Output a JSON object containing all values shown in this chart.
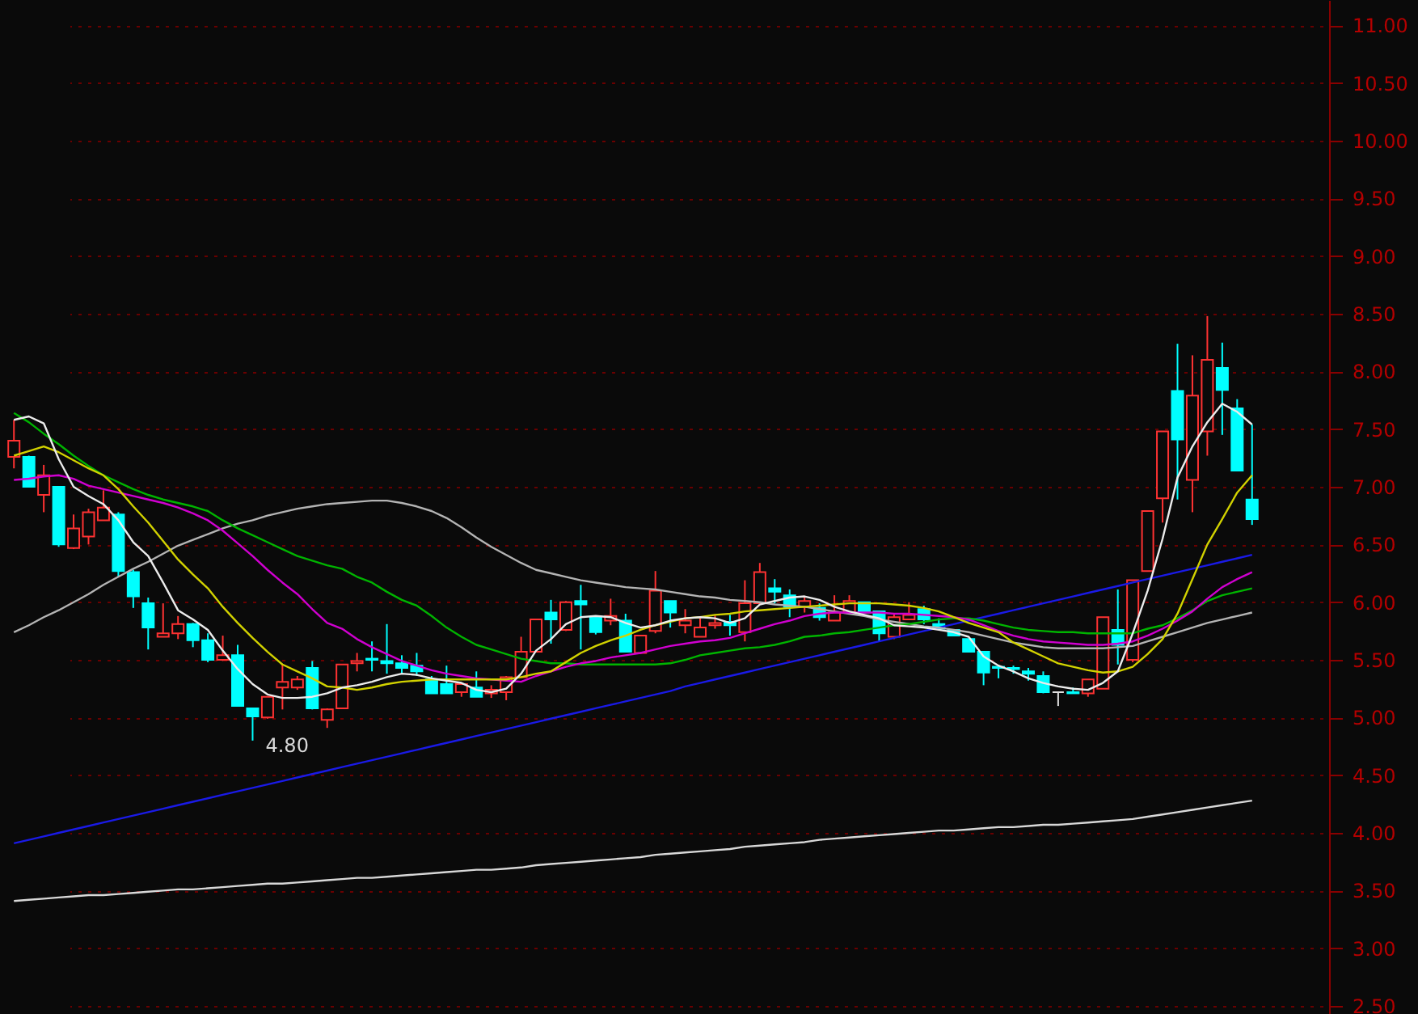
{
  "chart_data": {
    "type": "candlestick",
    "categories": [
      null,
      null,
      null,
      null,
      null,
      null,
      null,
      null,
      null,
      null,
      null,
      null,
      null,
      null,
      null,
      null,
      null,
      null,
      null,
      null,
      null,
      null,
      null,
      null,
      null,
      null,
      null,
      null,
      null,
      null,
      null,
      null,
      null,
      null,
      null,
      null,
      null,
      null,
      null,
      null,
      null,
      null,
      null,
      null,
      null,
      null,
      null,
      null,
      null,
      null,
      null,
      null,
      null,
      null,
      null,
      null,
      null,
      null,
      null,
      null,
      null,
      null,
      null,
      null,
      null,
      null,
      null,
      null,
      null,
      null,
      null,
      null,
      null,
      null,
      null,
      null,
      null,
      null,
      null,
      null,
      null,
      null,
      null,
      null
    ],
    "ohlc": [
      [
        7.26,
        7.58,
        7.16,
        7.4
      ],
      [
        7.26,
        7.27,
        7.0,
        7.0
      ],
      [
        6.93,
        7.19,
        6.78,
        7.1
      ],
      [
        7.0,
        7.0,
        6.48,
        6.5
      ],
      [
        6.47,
        6.76,
        6.46,
        6.64
      ],
      [
        6.57,
        6.81,
        6.5,
        6.78
      ],
      [
        6.71,
        6.97,
        6.71,
        6.82
      ],
      [
        6.76,
        6.78,
        6.22,
        6.27
      ],
      [
        6.26,
        6.28,
        5.95,
        6.05
      ],
      [
        5.99,
        6.04,
        5.59,
        5.78
      ],
      [
        5.7,
        5.99,
        5.7,
        5.73
      ],
      [
        5.73,
        5.88,
        5.68,
        5.81
      ],
      [
        5.81,
        5.82,
        5.61,
        5.67
      ],
      [
        5.67,
        5.73,
        5.48,
        5.5
      ],
      [
        5.5,
        5.71,
        5.49,
        5.54
      ],
      [
        5.54,
        5.63,
        5.1,
        5.1
      ],
      [
        5.08,
        5.08,
        4.8,
        5.01
      ],
      [
        5.0,
        5.18,
        4.99,
        5.18
      ],
      [
        5.26,
        5.46,
        5.07,
        5.31
      ],
      [
        5.26,
        5.36,
        5.24,
        5.33
      ],
      [
        5.43,
        5.49,
        5.07,
        5.08
      ],
      [
        4.98,
        5.08,
        4.91,
        5.07
      ],
      [
        5.08,
        5.46,
        5.08,
        5.46
      ],
      [
        5.47,
        5.56,
        5.4,
        5.49
      ],
      [
        5.51,
        5.66,
        5.4,
        5.5
      ],
      [
        5.49,
        5.81,
        5.38,
        5.47
      ],
      [
        5.47,
        5.54,
        5.38,
        5.43
      ],
      [
        5.45,
        5.56,
        5.36,
        5.4
      ],
      [
        5.33,
        5.36,
        5.21,
        5.21
      ],
      [
        5.29,
        5.45,
        5.21,
        5.21
      ],
      [
        5.22,
        5.3,
        5.18,
        5.29
      ],
      [
        5.26,
        5.4,
        5.18,
        5.18
      ],
      [
        5.21,
        5.28,
        5.17,
        5.24
      ],
      [
        5.22,
        5.36,
        5.15,
        5.35
      ],
      [
        5.35,
        5.7,
        5.35,
        5.57
      ],
      [
        5.57,
        5.85,
        5.57,
        5.85
      ],
      [
        5.91,
        6.02,
        5.64,
        5.85
      ],
      [
        5.76,
        6.01,
        5.75,
        6.0
      ],
      [
        6.01,
        6.15,
        5.59,
        5.98
      ],
      [
        5.87,
        5.87,
        5.72,
        5.74
      ],
      [
        5.84,
        6.03,
        5.8,
        5.88
      ],
      [
        5.84,
        5.9,
        5.57,
        5.57
      ],
      [
        5.56,
        5.71,
        5.55,
        5.71
      ],
      [
        5.75,
        6.27,
        5.73,
        6.1
      ],
      [
        6.01,
        6.01,
        5.78,
        5.91
      ],
      [
        5.8,
        5.94,
        5.73,
        5.84
      ],
      [
        5.7,
        5.86,
        5.7,
        5.78
      ],
      [
        5.8,
        5.89,
        5.77,
        5.82
      ],
      [
        5.83,
        5.89,
        5.71,
        5.8
      ],
      [
        5.74,
        6.19,
        5.66,
        5.99
      ],
      [
        5.99,
        6.34,
        5.99,
        6.26
      ],
      [
        6.12,
        6.2,
        5.99,
        6.09
      ],
      [
        6.06,
        6.11,
        5.87,
        5.96
      ],
      [
        5.96,
        6.05,
        5.91,
        6.01
      ],
      [
        5.95,
        5.99,
        5.84,
        5.87
      ],
      [
        5.84,
        6.06,
        5.84,
        5.91
      ],
      [
        5.91,
        6.06,
        5.9,
        6.01
      ],
      [
        6.0,
        6.0,
        5.91,
        5.91
      ],
      [
        5.92,
        5.92,
        5.66,
        5.73
      ],
      [
        5.7,
        5.9,
        5.68,
        5.87
      ],
      [
        5.85,
        6.0,
        5.85,
        5.89
      ],
      [
        5.94,
        5.97,
        5.81,
        5.85
      ],
      [
        5.81,
        5.86,
        5.77,
        5.77
      ],
      [
        5.76,
        5.76,
        5.71,
        5.71
      ],
      [
        5.68,
        5.68,
        5.57,
        5.57
      ],
      [
        5.57,
        5.57,
        5.28,
        5.39
      ],
      [
        5.44,
        5.44,
        5.34,
        5.43
      ],
      [
        5.43,
        5.45,
        5.38,
        5.42
      ],
      [
        5.4,
        5.43,
        5.32,
        5.38
      ],
      [
        5.36,
        5.4,
        5.21,
        5.22
      ],
      [
        5.22,
        5.22,
        5.1,
        5.22
      ],
      [
        5.22,
        5.26,
        5.21,
        5.21
      ],
      [
        5.21,
        5.33,
        5.18,
        5.33
      ],
      [
        5.25,
        5.87,
        5.25,
        5.87
      ],
      [
        5.76,
        6.11,
        5.46,
        5.63
      ],
      [
        5.5,
        6.19,
        5.48,
        6.19
      ],
      [
        6.27,
        6.79,
        6.27,
        6.79
      ],
      [
        6.9,
        7.48,
        6.69,
        7.48
      ],
      [
        7.83,
        8.24,
        6.89,
        7.41
      ],
      [
        7.06,
        8.14,
        6.78,
        7.79
      ],
      [
        7.48,
        8.48,
        7.27,
        8.1
      ],
      [
        8.03,
        8.25,
        7.45,
        7.84
      ],
      [
        7.68,
        7.76,
        7.14,
        7.14
      ],
      [
        6.89,
        7.54,
        6.67,
        6.72
      ]
    ],
    "colors": [
      "#ff3232",
      "#00ffff",
      "#ff3232",
      "#00ffff",
      "#ff3232",
      "#ff3232",
      "#ff3232",
      "#00ffff",
      "#00ffff",
      "#00ffff",
      "#ff3232",
      "#ff3232",
      "#00ffff",
      "#00ffff",
      "#ff3232",
      "#00ffff",
      "#00ffff",
      "#ff3232",
      "#ff3232",
      "#ff3232",
      "#00ffff",
      "#ff3232",
      "#ff3232",
      "#ff3232",
      "#00ffff",
      "#00ffff",
      "#00ffff",
      "#00ffff",
      "#00ffff",
      "#00ffff",
      "#ff3232",
      "#00ffff",
      "#ff3232",
      "#ff3232",
      "#ff3232",
      "#ff3232",
      "#00ffff",
      "#ff3232",
      "#00ffff",
      "#00ffff",
      "#ff3232",
      "#00ffff",
      "#ff3232",
      "#ff3232",
      "#00ffff",
      "#ff3232",
      "#ff3232",
      "#ff3232",
      "#00ffff",
      "#ff3232",
      "#ff3232",
      "#00ffff",
      "#00ffff",
      "#ff3232",
      "#00ffff",
      "#ff3232",
      "#ff3232",
      "#00ffff",
      "#00ffff",
      "#ff3232",
      "#ff3232",
      "#00ffff",
      "#00ffff",
      "#00ffff",
      "#00ffff",
      "#00ffff",
      "#00ffff",
      "#00ffff",
      "#00ffff",
      "#00ffff",
      "#e0e0e0",
      "#00ffff",
      "#ff3232",
      "#ff3232",
      "#00ffff",
      "#ff3232",
      "#ff3232",
      "#ff3232",
      "#00ffff",
      "#ff3232",
      "#ff3232",
      "#00ffff",
      "#00ffff",
      "#00ffff"
    ],
    "series": [
      {
        "type": "line",
        "color": "#d8d8d8",
        "values": [
          3.41,
          3.42,
          3.43,
          3.44,
          3.45,
          3.46,
          3.46,
          3.47,
          3.48,
          3.49,
          3.5,
          3.51,
          3.51,
          3.52,
          3.53,
          3.54,
          3.55,
          3.56,
          3.56,
          3.57,
          3.58,
          3.59,
          3.6,
          3.61,
          3.61,
          3.62,
          3.63,
          3.64,
          3.65,
          3.66,
          3.67,
          3.68,
          3.68,
          3.69,
          3.7,
          3.72,
          3.73,
          3.74,
          3.75,
          3.76,
          3.77,
          3.78,
          3.79,
          3.81,
          3.82,
          3.83,
          3.84,
          3.85,
          3.86,
          3.88,
          3.89,
          3.9,
          3.91,
          3.92,
          3.94,
          3.95,
          3.96,
          3.97,
          3.98,
          3.99,
          4.0,
          4.01,
          4.02,
          4.02,
          4.03,
          4.04,
          4.05,
          4.05,
          4.06,
          4.07,
          4.07,
          4.08,
          4.09,
          4.1,
          4.11,
          4.12,
          4.14,
          4.16,
          4.18,
          4.2,
          4.22,
          4.24,
          4.26,
          4.28
        ]
      },
      {
        "type": "line",
        "color": "#1a1ae6",
        "values": [
          3.91,
          3.94,
          3.97,
          4.0,
          4.03,
          4.06,
          4.09,
          4.12,
          4.15,
          4.18,
          4.21,
          4.24,
          4.27,
          4.3,
          4.33,
          4.36,
          4.39,
          4.42,
          4.45,
          4.48,
          4.51,
          4.54,
          4.57,
          4.6,
          4.63,
          4.66,
          4.69,
          4.72,
          4.75,
          4.78,
          4.81,
          4.84,
          4.87,
          4.9,
          4.93,
          4.96,
          4.99,
          5.02,
          5.05,
          5.08,
          5.11,
          5.14,
          5.17,
          5.2,
          5.23,
          5.27,
          5.3,
          5.33,
          5.36,
          5.39,
          5.42,
          5.45,
          5.48,
          5.51,
          5.54,
          5.57,
          5.6,
          5.63,
          5.66,
          5.69,
          5.72,
          5.75,
          5.78,
          5.81,
          5.84,
          5.87,
          5.9,
          5.93,
          5.96,
          5.99,
          6.02,
          6.05,
          6.08,
          6.11,
          6.14,
          6.17,
          6.2,
          6.23,
          6.26,
          6.29,
          6.32,
          6.35,
          6.38,
          6.41
        ]
      },
      {
        "type": "line",
        "color": "#b4b4b4",
        "values": [
          5.74,
          5.8,
          5.87,
          5.93,
          6.0,
          6.07,
          6.15,
          6.22,
          6.29,
          6.35,
          6.42,
          6.49,
          6.54,
          6.59,
          6.64,
          6.68,
          6.71,
          6.75,
          6.78,
          6.81,
          6.83,
          6.85,
          6.86,
          6.87,
          6.88,
          6.88,
          6.86,
          6.83,
          6.79,
          6.73,
          6.65,
          6.56,
          6.48,
          6.41,
          6.34,
          6.28,
          6.25,
          6.22,
          6.19,
          6.17,
          6.15,
          6.13,
          6.12,
          6.11,
          6.09,
          6.07,
          6.05,
          6.04,
          6.02,
          6.01,
          6.0,
          5.98,
          5.97,
          5.96,
          5.94,
          5.92,
          5.9,
          5.88,
          5.85,
          5.83,
          5.81,
          5.79,
          5.78,
          5.76,
          5.74,
          5.71,
          5.68,
          5.65,
          5.63,
          5.61,
          5.6,
          5.6,
          5.6,
          5.6,
          5.61,
          5.62,
          5.66,
          5.7,
          5.74,
          5.78,
          5.82,
          5.85,
          5.88,
          5.91
        ]
      },
      {
        "type": "line",
        "color": "#00b400",
        "values": [
          7.64,
          7.56,
          7.46,
          7.37,
          7.27,
          7.18,
          7.1,
          7.04,
          6.98,
          6.93,
          6.89,
          6.86,
          6.83,
          6.79,
          6.71,
          6.64,
          6.58,
          6.52,
          6.46,
          6.4,
          6.36,
          6.32,
          6.29,
          6.22,
          6.17,
          6.09,
          6.02,
          5.97,
          5.88,
          5.78,
          5.7,
          5.63,
          5.59,
          5.55,
          5.51,
          5.49,
          5.47,
          5.47,
          5.46,
          5.46,
          5.46,
          5.46,
          5.46,
          5.46,
          5.47,
          5.5,
          5.54,
          5.56,
          5.58,
          5.6,
          5.61,
          5.63,
          5.66,
          5.7,
          5.71,
          5.73,
          5.74,
          5.76,
          5.78,
          5.8,
          5.81,
          5.83,
          5.85,
          5.86,
          5.86,
          5.84,
          5.81,
          5.78,
          5.76,
          5.75,
          5.74,
          5.74,
          5.73,
          5.73,
          5.73,
          5.73,
          5.77,
          5.8,
          5.86,
          5.93,
          6.01,
          6.06,
          6.09,
          6.12
        ]
      },
      {
        "type": "line",
        "color": "#d000d0",
        "values": [
          7.06,
          7.07,
          7.09,
          7.1,
          7.07,
          7.01,
          6.98,
          6.95,
          6.92,
          6.89,
          6.86,
          6.82,
          6.77,
          6.71,
          6.62,
          6.51,
          6.4,
          6.28,
          6.17,
          6.07,
          5.94,
          5.82,
          5.77,
          5.68,
          5.61,
          5.55,
          5.49,
          5.45,
          5.41,
          5.38,
          5.36,
          5.34,
          5.33,
          5.32,
          5.31,
          5.36,
          5.4,
          5.44,
          5.47,
          5.49,
          5.52,
          5.54,
          5.56,
          5.59,
          5.62,
          5.64,
          5.66,
          5.67,
          5.69,
          5.73,
          5.77,
          5.81,
          5.84,
          5.88,
          5.9,
          5.91,
          5.91,
          5.91,
          5.91,
          5.9,
          5.9,
          5.89,
          5.88,
          5.87,
          5.85,
          5.8,
          5.75,
          5.71,
          5.68,
          5.66,
          5.65,
          5.64,
          5.63,
          5.63,
          5.64,
          5.66,
          5.71,
          5.77,
          5.84,
          5.92,
          6.03,
          6.13,
          6.2,
          6.26
        ]
      },
      {
        "type": "line",
        "color": "#d2d200",
        "values": [
          7.27,
          7.31,
          7.35,
          7.3,
          7.23,
          7.16,
          7.1,
          6.98,
          6.83,
          6.69,
          6.53,
          6.37,
          6.24,
          6.12,
          5.96,
          5.82,
          5.69,
          5.57,
          5.46,
          5.4,
          5.34,
          5.27,
          5.26,
          5.24,
          5.26,
          5.29,
          5.31,
          5.32,
          5.33,
          5.33,
          5.33,
          5.33,
          5.33,
          5.33,
          5.35,
          5.38,
          5.4,
          5.48,
          5.56,
          5.62,
          5.67,
          5.71,
          5.76,
          5.8,
          5.83,
          5.86,
          5.87,
          5.89,
          5.9,
          5.92,
          5.93,
          5.94,
          5.95,
          5.96,
          5.97,
          5.98,
          5.99,
          5.99,
          5.99,
          5.98,
          5.97,
          5.95,
          5.92,
          5.87,
          5.82,
          5.78,
          5.74,
          5.65,
          5.59,
          5.53,
          5.47,
          5.44,
          5.41,
          5.39,
          5.4,
          5.44,
          5.55,
          5.68,
          5.9,
          6.2,
          6.5,
          6.72,
          6.95,
          7.1
        ]
      },
      {
        "type": "line",
        "color": "#ececec",
        "values": [
          7.58,
          7.61,
          7.55,
          7.24,
          7.0,
          6.92,
          6.85,
          6.71,
          6.52,
          6.4,
          6.17,
          5.93,
          5.85,
          5.76,
          5.58,
          5.42,
          5.29,
          5.2,
          5.17,
          5.17,
          5.18,
          5.21,
          5.26,
          5.28,
          5.31,
          5.35,
          5.38,
          5.37,
          5.34,
          5.32,
          5.3,
          5.24,
          5.22,
          5.25,
          5.38,
          5.58,
          5.68,
          5.81,
          5.87,
          5.88,
          5.87,
          5.82,
          5.78,
          5.8,
          5.84,
          5.86,
          5.87,
          5.86,
          5.82,
          5.86,
          5.98,
          6.01,
          6.04,
          6.05,
          6.02,
          5.96,
          5.92,
          5.89,
          5.86,
          5.8,
          5.79,
          5.78,
          5.76,
          5.74,
          5.7,
          5.53,
          5.45,
          5.4,
          5.34,
          5.3,
          5.27,
          5.25,
          5.24,
          5.3,
          5.4,
          5.73,
          6.1,
          6.55,
          7.08,
          7.35,
          7.56,
          7.72,
          7.65,
          7.54
        ]
      }
    ],
    "ylim": [
      2.43,
      11.22
    ],
    "yticks": [
      {
        "value": 2.5,
        "label": "2.50"
      },
      {
        "value": 3,
        "label": "3.00"
      },
      {
        "value": 3.5,
        "label": "3.50"
      },
      {
        "value": 4,
        "label": "4.00"
      },
      {
        "value": 4.5,
        "label": "4.50"
      },
      {
        "value": 5,
        "label": "5.00"
      },
      {
        "value": 5.5,
        "label": "5.50"
      },
      {
        "value": 6,
        "label": "6.00"
      },
      {
        "value": 6.5,
        "label": "6.50"
      },
      {
        "value": 7,
        "label": "7.00"
      },
      {
        "value": 7.5,
        "label": "7.50"
      },
      {
        "value": 8,
        "label": "8.00"
      },
      {
        "value": 8.5,
        "label": "8.50"
      },
      {
        "value": 9,
        "label": "9.00"
      },
      {
        "value": 9.5,
        "label": "9.50"
      },
      {
        "value": 10,
        "label": "10.00"
      },
      {
        "value": 10.5,
        "label": "10.50"
      },
      {
        "value": 11,
        "label": "11.00"
      }
    ],
    "grid": "y",
    "tick_labels": "y",
    "annotations": [
      "4.80"
    ]
  }
}
